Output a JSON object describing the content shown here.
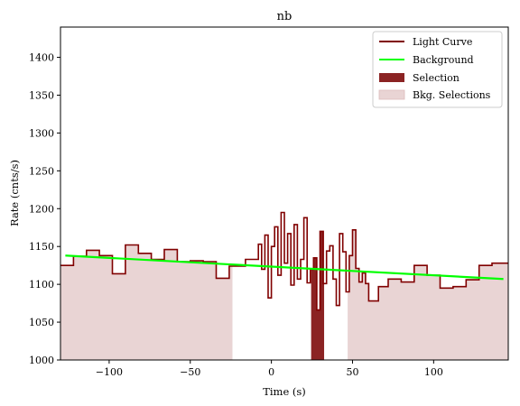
{
  "chart_data": {
    "type": "line",
    "title": "nb",
    "xlabel": "Time (s)",
    "ylabel": "Rate (cnts/s)",
    "xlim": [
      -130,
      146
    ],
    "ylim": [
      1000,
      1440
    ],
    "xticks": [
      -100,
      -50,
      0,
      50,
      100
    ],
    "yticks": [
      1000,
      1050,
      1100,
      1150,
      1200,
      1250,
      1300,
      1350,
      1400
    ],
    "grid": false,
    "legend_position": "top-right",
    "legend": [
      "Light Curve",
      "Background",
      "Selection",
      "Bkg. Selections"
    ],
    "colors": {
      "light_curve": "#800000",
      "background": "#00ff00",
      "selection": "#8b2323",
      "bkg_selection": "#e9d4d4"
    },
    "light_curve": {
      "name": "Light Curve",
      "edges": [
        -130,
        -122,
        -114,
        -106,
        -98,
        -90,
        -82,
        -74,
        -66,
        -58,
        -50,
        -42,
        -34,
        -26,
        -16,
        -8,
        -6,
        -4,
        -2,
        0,
        2,
        4,
        6,
        8,
        10,
        12,
        14,
        16,
        18,
        20,
        22,
        24,
        26,
        28,
        30,
        32,
        34,
        36,
        38,
        40,
        42,
        44,
        46,
        48,
        50,
        52,
        54,
        56,
        58,
        60,
        66,
        72,
        80,
        88,
        96,
        104,
        112,
        120,
        128,
        136,
        146
      ],
      "values": [
        1125,
        1137,
        1145,
        1138,
        1114,
        1152,
        1141,
        1133,
        1146,
        1130,
        1131,
        1130,
        1108,
        1124,
        1133,
        1153,
        1120,
        1165,
        1082,
        1150,
        1176,
        1112,
        1195,
        1128,
        1167,
        1099,
        1179,
        1107,
        1133,
        1188,
        1102,
        1120,
        1135,
        1066,
        1170,
        1101,
        1144,
        1151,
        1107,
        1072,
        1167,
        1143,
        1090,
        1138,
        1172,
        1121,
        1103,
        1115,
        1101,
        1078,
        1097,
        1107,
        1103,
        1125,
        1112,
        1095,
        1097,
        1106,
        1125,
        1128
      ]
    },
    "background": {
      "name": "Background",
      "x": [
        -127,
        143
      ],
      "y": [
        1138,
        1107
      ]
    },
    "selection": {
      "name": "Selection",
      "x_range": [
        24.5,
        32.5
      ]
    },
    "bkg_selections": {
      "name": "Bkg. Selections",
      "ranges": [
        [
          -130,
          -24
        ],
        [
          47,
          146
        ]
      ]
    }
  }
}
